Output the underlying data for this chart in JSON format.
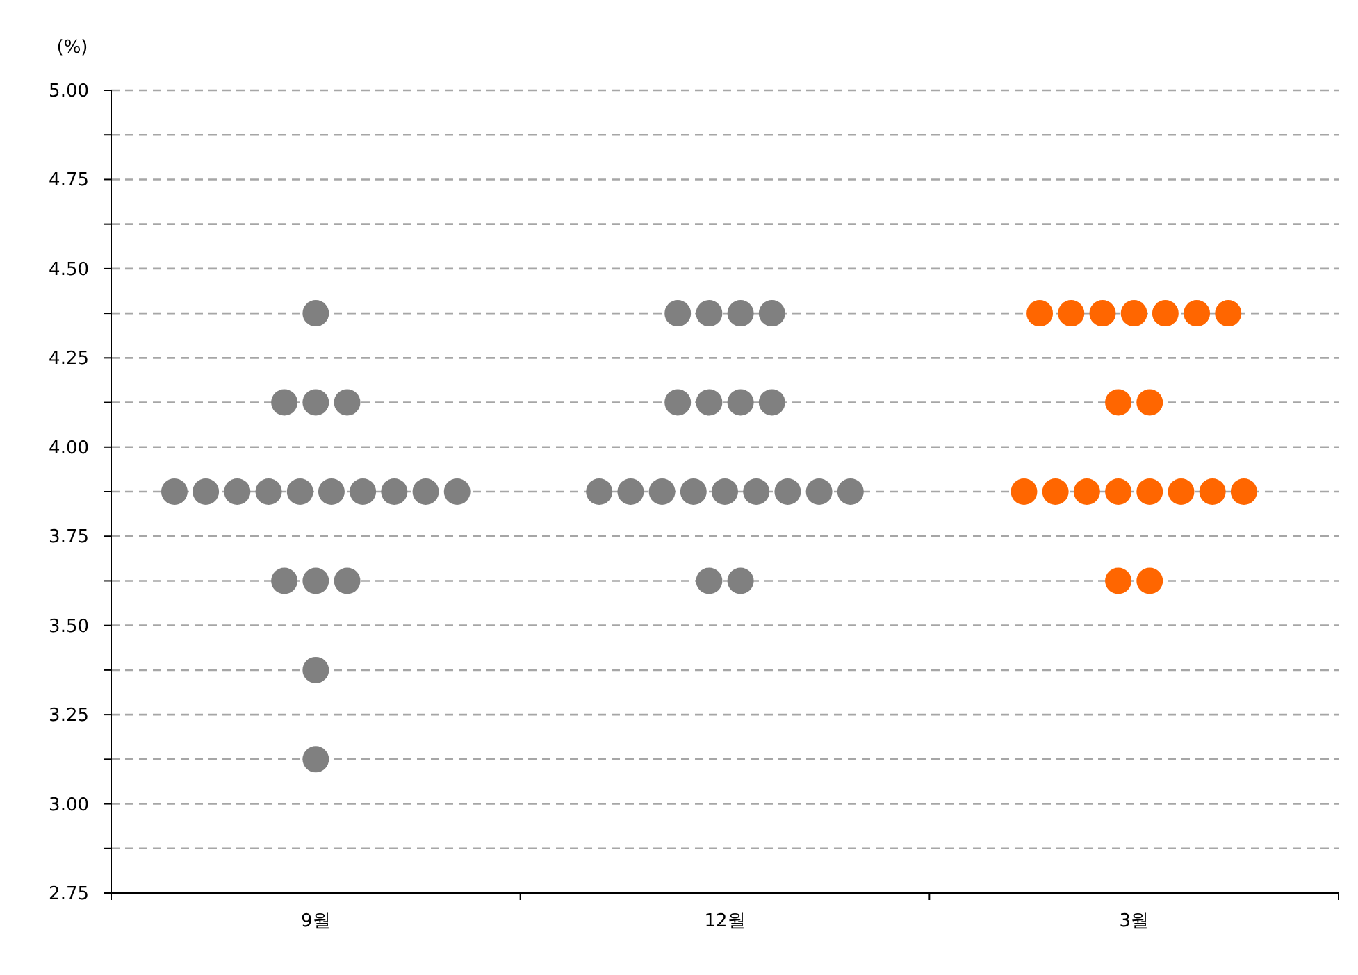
{
  "chart_data": {
    "type": "scatter",
    "ylabel": "(%)",
    "categories": [
      "9월",
      "12월",
      "3월"
    ],
    "ylim": [
      2.75,
      5.0
    ],
    "yticks": [
      {
        "value": 2.75,
        "label": "2.75"
      },
      {
        "value": 2.875,
        "label": null
      },
      {
        "value": 3.0,
        "label": "3.00"
      },
      {
        "value": 3.125,
        "label": null
      },
      {
        "value": 3.25,
        "label": "3.25"
      },
      {
        "value": 3.375,
        "label": null
      },
      {
        "value": 3.5,
        "label": "3.50"
      },
      {
        "value": 3.625,
        "label": null
      },
      {
        "value": 3.75,
        "label": "3.75"
      },
      {
        "value": 3.875,
        "label": null
      },
      {
        "value": 4.0,
        "label": "4.00"
      },
      {
        "value": 4.125,
        "label": null
      },
      {
        "value": 4.25,
        "label": "4.25"
      },
      {
        "value": 4.375,
        "label": null
      },
      {
        "value": 4.5,
        "label": "4.50"
      },
      {
        "value": 4.625,
        "label": null
      },
      {
        "value": 4.75,
        "label": "4.75"
      },
      {
        "value": 4.875,
        "label": null
      },
      {
        "value": 5.0,
        "label": "5.00"
      }
    ],
    "grid": "y",
    "marker": "circle",
    "series": [
      {
        "color": "#808080",
        "x": [
          "9월",
          "9월",
          "9월",
          "9월",
          "9월",
          "9월",
          "9월",
          "9월",
          "9월",
          "9월",
          "9월",
          "9월",
          "9월",
          "9월",
          "9월",
          "9월",
          "9월",
          "9월",
          "9월",
          "12월",
          "12월",
          "12월",
          "12월",
          "12월",
          "12월",
          "12월",
          "12월",
          "12월",
          "12월",
          "12월",
          "12월",
          "12월",
          "12월",
          "12월",
          "12월",
          "12월",
          "12월",
          "12월"
        ],
        "values": [
          4.375,
          4.125,
          4.125,
          4.125,
          3.875,
          3.875,
          3.875,
          3.875,
          3.875,
          3.875,
          3.875,
          3.875,
          3.875,
          3.875,
          3.625,
          3.625,
          3.625,
          3.375,
          3.125,
          4.375,
          4.375,
          4.375,
          4.375,
          4.125,
          4.125,
          4.125,
          4.125,
          3.875,
          3.875,
          3.875,
          3.875,
          3.875,
          3.875,
          3.875,
          3.875,
          3.875,
          3.625,
          3.625
        ]
      },
      {
        "color": "#ff6600",
        "x": [
          "3월",
          "3월",
          "3월",
          "3월",
          "3월",
          "3월",
          "3월",
          "3월",
          "3월",
          "3월",
          "3월",
          "3월",
          "3월",
          "3월",
          "3월",
          "3월",
          "3월",
          "3월",
          "3월"
        ],
        "values": [
          4.375,
          4.375,
          4.375,
          4.375,
          4.375,
          4.375,
          4.375,
          4.125,
          4.125,
          3.875,
          3.875,
          3.875,
          3.875,
          3.875,
          3.875,
          3.875,
          3.875,
          3.625,
          3.625
        ]
      }
    ]
  }
}
